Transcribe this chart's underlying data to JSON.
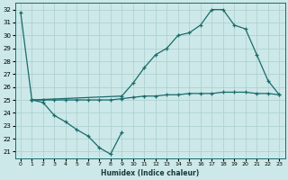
{
  "xlabel": "Humidex (Indice chaleur)",
  "bg_color": "#cce8e8",
  "grid_color": "#aacece",
  "line_color": "#1a6b6b",
  "xlim": [
    -0.5,
    23.5
  ],
  "ylim": [
    20.5,
    32.5
  ],
  "xticks": [
    0,
    1,
    2,
    3,
    4,
    5,
    6,
    7,
    8,
    9,
    10,
    11,
    12,
    13,
    14,
    15,
    16,
    17,
    18,
    19,
    20,
    21,
    22,
    23
  ],
  "yticks": [
    21,
    22,
    23,
    24,
    25,
    26,
    27,
    28,
    29,
    30,
    31,
    32
  ],
  "line1_x": [
    0,
    1,
    2,
    3,
    4,
    5,
    6,
    7,
    8,
    9
  ],
  "line1_y": [
    31.8,
    25.0,
    24.8,
    23.8,
    23.3,
    22.7,
    22.2,
    21.3,
    20.8,
    22.5
  ],
  "line2_x": [
    1,
    2,
    3,
    4,
    5,
    6,
    7,
    8,
    9,
    10,
    11,
    12,
    13,
    14,
    15,
    16,
    17,
    18,
    19,
    20,
    21,
    22,
    23
  ],
  "line2_y": [
    25.0,
    25.0,
    25.0,
    25.0,
    25.0,
    25.0,
    25.0,
    25.0,
    25.1,
    25.2,
    25.3,
    25.3,
    25.4,
    25.4,
    25.5,
    25.5,
    25.5,
    25.6,
    25.6,
    25.6,
    25.5,
    25.5,
    25.4
  ],
  "line3_x": [
    1,
    9,
    10,
    11,
    12,
    13,
    14,
    15,
    16,
    17,
    18,
    19,
    20,
    21,
    22,
    23
  ],
  "line3_y": [
    25.0,
    25.3,
    26.3,
    27.5,
    28.5,
    29.0,
    30.0,
    30.2,
    30.8,
    32.0,
    32.0,
    30.8,
    30.5,
    28.5,
    26.5,
    25.4
  ]
}
